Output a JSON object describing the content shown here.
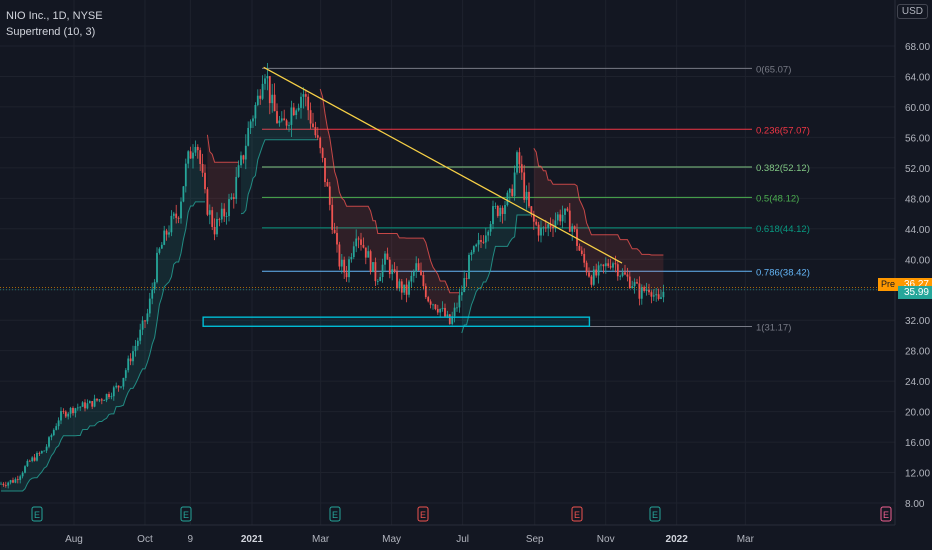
{
  "legend": {
    "symbol": "NIO Inc., 1D, NYSE",
    "indicator": "Supertrend (10, 3)"
  },
  "currency": "USD",
  "pre_label": "Pre",
  "colors": {
    "background": "#131722",
    "up": "#26a69a",
    "down": "#ef5350",
    "trendline": "#f7d046",
    "zone": "#00bcd4",
    "axis_text": "#b2b5be"
  },
  "chart_data": {
    "type": "candlestick",
    "title": "NIO Inc., 1D, NYSE",
    "y_axis": {
      "ticks": [
        "8.00",
        "12.00",
        "16.00",
        "20.00",
        "24.00",
        "28.00",
        "32.00",
        "36.00",
        "40.00",
        "44.00",
        "48.00",
        "52.00",
        "56.00",
        "60.00",
        "64.00",
        "68.00"
      ],
      "range": [
        6.5,
        70.5
      ],
      "side": "right"
    },
    "x_axis": {
      "ticks": [
        {
          "label": "Aug",
          "bold": false
        },
        {
          "label": "Oct",
          "bold": false
        },
        {
          "label": "9",
          "bold": false
        },
        {
          "label": "2021",
          "bold": true
        },
        {
          "label": "Mar",
          "bold": false
        },
        {
          "label": "May",
          "bold": false
        },
        {
          "label": "Jul",
          "bold": false
        },
        {
          "label": "Sep",
          "bold": false
        },
        {
          "label": "Nov",
          "bold": false
        },
        {
          "label": "2022",
          "bold": true
        },
        {
          "label": "Mar",
          "bold": false
        }
      ]
    },
    "price_labels": [
      {
        "label": "Pre",
        "value": "36.27",
        "color": "#ff9800"
      },
      {
        "label": "",
        "value": "35.99",
        "color": "#26a69a"
      }
    ],
    "fibonacci_levels": [
      {
        "ratio": "0",
        "price": 65.07,
        "label": "0(65.07)",
        "color": "#787b86"
      },
      {
        "ratio": "0.236",
        "price": 57.07,
        "label": "0.236(57.07)",
        "color": "#f23645"
      },
      {
        "ratio": "0.382",
        "price": 52.12,
        "label": "0.382(52.12)",
        "color": "#81c784"
      },
      {
        "ratio": "0.5",
        "price": 48.12,
        "label": "0.5(48.12)",
        "color": "#4caf50"
      },
      {
        "ratio": "0.618",
        "price": 44.12,
        "label": "0.618(44.12)",
        "color": "#089981"
      },
      {
        "ratio": "0.786",
        "price": 38.42,
        "label": "0.786(38.42)",
        "color": "#64b5f6"
      },
      {
        "ratio": "1",
        "price": 31.17,
        "label": "1(31.17)",
        "color": "#787b86"
      }
    ],
    "trendline": {
      "from": {
        "date": "2021-01-11",
        "price": 65.2
      },
      "to": {
        "date": "2021-11-15",
        "price": 39.5
      }
    },
    "support_zone": {
      "from_date": "2020-11-20",
      "to_date": "2021-10-18",
      "low": 31.2,
      "high": 32.4
    },
    "earnings_markers": [
      {
        "label": "E",
        "type": "past"
      },
      {
        "label": "E",
        "type": "past"
      },
      {
        "label": "E",
        "type": "past"
      },
      {
        "label": "E",
        "type": "negative"
      },
      {
        "label": "E",
        "type": "negative"
      },
      {
        "label": "E",
        "type": "past"
      },
      {
        "label": "E",
        "type": "past"
      },
      {
        "label": "E",
        "type": "past"
      },
      {
        "label": "E",
        "type": "upcoming"
      }
    ],
    "price_path": [
      [
        0,
        10.5
      ],
      [
        15,
        11.0
      ],
      [
        30,
        13.5
      ],
      [
        45,
        15.0
      ],
      [
        60,
        19.5
      ],
      [
        75,
        20.5
      ],
      [
        90,
        21.0
      ],
      [
        105,
        22.0
      ],
      [
        120,
        23.5
      ],
      [
        130,
        27.0
      ],
      [
        138,
        29.5
      ],
      [
        148,
        33.0
      ],
      [
        158,
        40.5
      ],
      [
        168,
        44.0
      ],
      [
        178,
        46.0
      ],
      [
        186,
        52.0
      ],
      [
        196,
        56.5
      ],
      [
        205,
        48.0
      ],
      [
        214,
        44.0
      ],
      [
        222,
        45.5
      ],
      [
        232,
        48.0
      ],
      [
        242,
        53.0
      ],
      [
        250,
        58.0
      ],
      [
        258,
        61.0
      ],
      [
        264,
        66.0
      ],
      [
        272,
        60.0
      ],
      [
        282,
        57.0
      ],
      [
        292,
        60.0
      ],
      [
        303,
        62.0
      ],
      [
        312,
        58.0
      ],
      [
        322,
        53.0
      ],
      [
        330,
        47.0
      ],
      [
        338,
        40.0
      ],
      [
        346,
        38.0
      ],
      [
        356,
        44.0
      ],
      [
        366,
        41.0
      ],
      [
        376,
        37.5
      ],
      [
        386,
        40.0
      ],
      [
        396,
        37.0
      ],
      [
        406,
        35.5
      ],
      [
        416,
        39.0
      ],
      [
        428,
        35.0
      ],
      [
        440,
        33.5
      ],
      [
        450,
        31.5
      ],
      [
        460,
        35.0
      ],
      [
        470,
        40.0
      ],
      [
        480,
        42.0
      ],
      [
        490,
        45.5
      ],
      [
        500,
        47.0
      ],
      [
        510,
        48.0
      ],
      [
        518,
        53.5
      ],
      [
        524,
        49.0
      ],
      [
        532,
        45.0
      ],
      [
        542,
        43.5
      ],
      [
        552,
        45.0
      ],
      [
        562,
        46.0
      ],
      [
        572,
        44.5
      ],
      [
        582,
        40.0
      ],
      [
        592,
        37.5
      ],
      [
        602,
        38.5
      ],
      [
        612,
        40.0
      ],
      [
        622,
        38.0
      ],
      [
        632,
        37.0
      ],
      [
        640,
        35.5
      ],
      [
        650,
        36.5
      ],
      [
        658,
        34.0
      ],
      [
        664,
        36.0
      ]
    ]
  }
}
